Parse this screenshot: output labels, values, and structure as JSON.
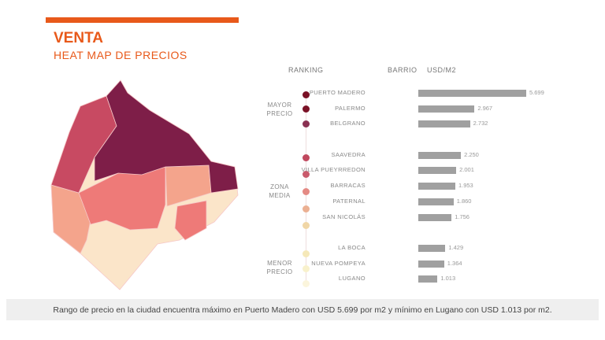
{
  "header": {
    "title": "VENTA",
    "subtitle": "HEAT MAP DE PRECIOS"
  },
  "columns": {
    "ranking": "RANKING",
    "barrio": "BARRIO",
    "usd": "USD/M2"
  },
  "groups": [
    {
      "line1": "MAYOR",
      "line2": "PRECIO"
    },
    {
      "line1": "ZONA",
      "line2": "MEDIA"
    },
    {
      "line1": "MENOR",
      "line2": "PRECIO"
    }
  ],
  "ranking_colors": [
    "#7a1126",
    "#7a1126",
    "#8a3152",
    "#c0485e",
    "#c95a6c",
    "#e48a84",
    "#ebb092",
    "#f0d6a6",
    "#f5e8b8",
    "#f8f1cc",
    "#fbf5dc"
  ],
  "chart_data": {
    "type": "bar",
    "orientation": "horizontal",
    "categories": [
      "PUERTO MADERO",
      "PALERMO",
      "BELGRANO",
      "SAAVEDRA",
      "VILLA PUEYRREDON",
      "BARRACAS",
      "PATERNAL",
      "SAN NICOLÁS",
      "LA BOCA",
      "NUEVA POMPEYA",
      "LUGANO"
    ],
    "values": [
      5699,
      2967,
      2732,
      2250,
      2001,
      1953,
      1860,
      1756,
      1429,
      1364,
      1013
    ],
    "value_labels": [
      "5.699",
      "2.967",
      "2.732",
      "2.250",
      "2.001",
      "1.953",
      "1.860",
      "1.756",
      "1.429",
      "1.364",
      "1.013"
    ],
    "xlabel": "USD/M2",
    "bar_color": "#a0a0a0"
  },
  "map_colors": {
    "dark": "#7e1e48",
    "dark2": "#9a2e55",
    "mid": "#c84a62",
    "pink": "#ee7a78",
    "salmon": "#f4a48c",
    "light": "#fbe5c9"
  },
  "footer": "Rango de precio en la ciudad encuentra máximo en Puerto Madero con USD 5.699 por m2 y mínimo en Lugano con USD 1.013 por m2."
}
